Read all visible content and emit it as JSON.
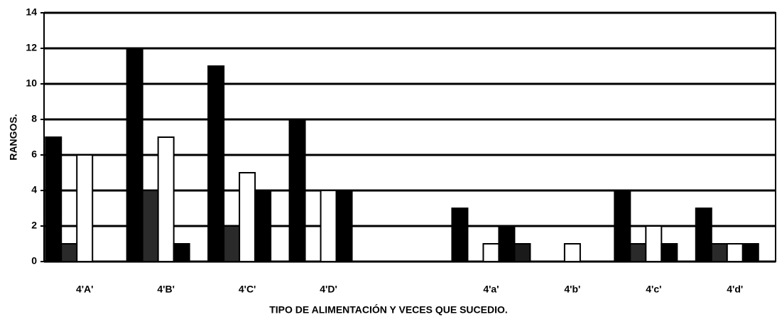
{
  "chart_data": {
    "type": "bar",
    "title": "TIPO DE ALIMENTACIÓN Y VECES QUE SUCEDIO.",
    "y_label": "RANGOS.",
    "categories": [
      "4'A'",
      "4'B'",
      "4'C'",
      "4'D'",
      null,
      "4'a'",
      "4'b'",
      "4'c'",
      "4'd'"
    ],
    "series": [
      {
        "color": "#000000",
        "values": [
          7,
          12,
          11,
          8,
          null,
          3,
          0,
          4,
          3
        ]
      },
      {
        "color": "#2a2a2a",
        "values": [
          1,
          4,
          2,
          0,
          null,
          0,
          0,
          1,
          1
        ]
      },
      {
        "color": "#ffffff",
        "values": [
          6,
          7,
          5,
          4,
          null,
          1,
          1,
          2,
          1
        ]
      },
      {
        "color": "#000000",
        "values": [
          0,
          1,
          4,
          4,
          null,
          2,
          0,
          1,
          1
        ]
      },
      {
        "color": "#1a1a1a",
        "values": [
          0,
          0,
          0,
          0,
          null,
          1,
          0,
          0,
          0
        ]
      }
    ],
    "ylim": [
      0,
      14
    ],
    "yticks": [
      0,
      2,
      4,
      6,
      8,
      10,
      12,
      14
    ],
    "grid": true
  }
}
